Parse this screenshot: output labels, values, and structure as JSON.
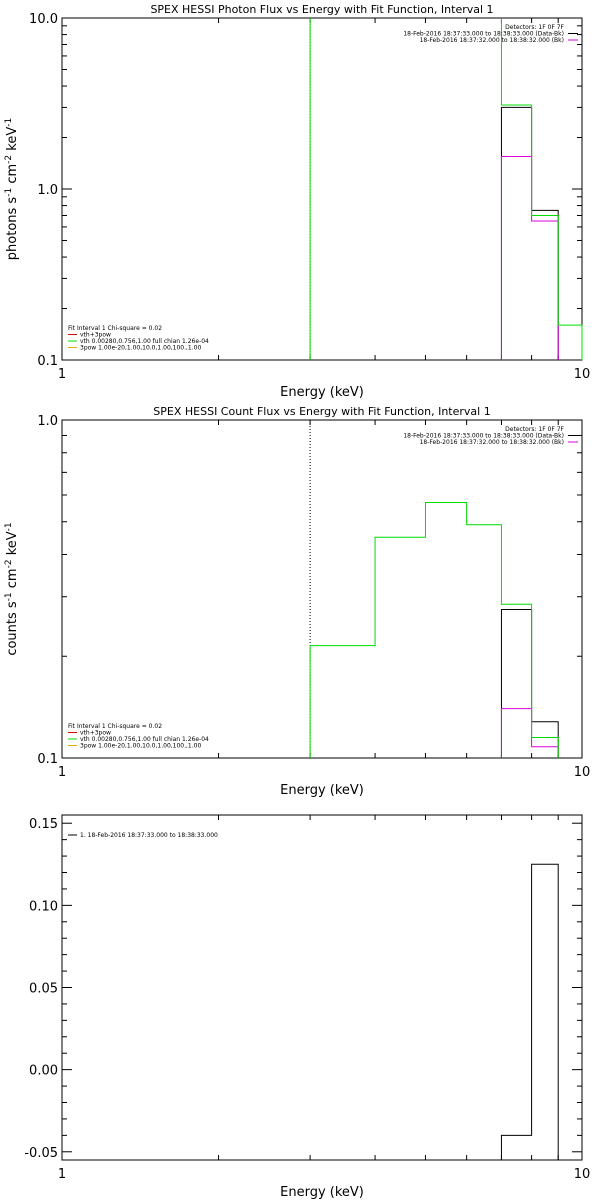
{
  "colors": {
    "black": "#000000",
    "green": "#00dd00",
    "magenta": "#dd00dd",
    "red": "#dd0000",
    "orange": "#ddaa00"
  },
  "chart_data": [
    {
      "type": "line",
      "title": "SPEX HESSI Photon Flux vs Energy with Fit Function, Interval 1",
      "xlabel": "Energy (keV)",
      "ylabel_parts": [
        "photons s",
        "-1",
        " cm",
        "-2",
        " keV",
        "-1"
      ],
      "xscale": "log",
      "yscale": "log",
      "xlim": [
        1,
        10
      ],
      "ylim": [
        0.1,
        10.0
      ],
      "xticks": [
        {
          "value": 1,
          "label": "1"
        },
        {
          "value": 10,
          "label": "10"
        }
      ],
      "yticks": [
        {
          "value": 0.1,
          "label": "0.1"
        },
        {
          "value": 1.0,
          "label": "1.0"
        },
        {
          "value": 10.0,
          "label": "10.0"
        }
      ],
      "vline": {
        "x": 3.0,
        "style": "solid-green-black"
      },
      "legend_right": [
        {
          "text": "Detectors: 1F 0F 7F",
          "color": ""
        },
        {
          "text": "18-Feb-2016 18:37:33.000 to 18:38:33.000 (Data-Bk)",
          "color": "#000000"
        },
        {
          "text": "18-Feb-2016 18:37:32.000 to 18:38:32.000 (Bk)",
          "color": "#dd00dd"
        }
      ],
      "legend_left": [
        {
          "text": "Fit Interval 1   Chi-square = 0.02",
          "color": ""
        },
        {
          "text": "vth+3pow",
          "color": "#dd0000"
        },
        {
          "text": "vth 0.00280,0.756,1.00  full chian 1.26e-04",
          "color": "#00dd00"
        },
        {
          "text": "3pow 1.00e-20,1.00,10.0,1.00,100.,1.00",
          "color": "#ddaa00"
        }
      ],
      "series": [
        {
          "name": "Data-Bk",
          "color": "#000000",
          "edges": [
            7.0,
            8.0,
            9.0
          ],
          "values": [
            3.0,
            0.75
          ]
        },
        {
          "name": "Bk",
          "color": "#dd00dd",
          "edges": [
            7.0,
            8.0,
            9.0
          ],
          "values": [
            1.55,
            0.65
          ]
        },
        {
          "name": "vth",
          "color": "#00dd00",
          "edges": [
            7.0,
            8.0,
            9.0,
            10.0
          ],
          "values": [
            3.1,
            0.7,
            0.16
          ],
          "left_spike": 10.0
        }
      ]
    },
    {
      "type": "line",
      "title": "SPEX HESSI Count Flux vs Energy with Fit Function, Interval 1",
      "xlabel": "Energy (keV)",
      "ylabel_parts": [
        "counts s",
        "-1",
        " cm",
        "-2",
        " keV",
        "-1"
      ],
      "xscale": "log",
      "yscale": "log",
      "xlim": [
        1,
        10
      ],
      "ylim": [
        0.1,
        1.0
      ],
      "xticks": [
        {
          "value": 1,
          "label": "1"
        },
        {
          "value": 10,
          "label": "10"
        }
      ],
      "yticks": [
        {
          "value": 0.1,
          "label": "0.1"
        },
        {
          "value": 1.0,
          "label": "1.0"
        }
      ],
      "vline": {
        "x": 3.0,
        "style": "dotted-black"
      },
      "legend_right": [
        {
          "text": "Detectors: 1F 0F 7F",
          "color": ""
        },
        {
          "text": "18-Feb-2016 18:37:33.000 to 18:38:33.000 (Data-Bk)",
          "color": "#000000"
        },
        {
          "text": "18-Feb-2016 18:37:32.000 to 18:38:32.000 (Bk)",
          "color": "#dd00dd"
        }
      ],
      "legend_left": [
        {
          "text": "Fit Interval 1   Chi-square = 0.02",
          "color": ""
        },
        {
          "text": "vth+3pow",
          "color": "#dd0000"
        },
        {
          "text": "vth 0.00280,0.756,1.00  full chian 1.26e-04",
          "color": "#00dd00"
        },
        {
          "text": "3pow 1.00e-20,1.00,10.0,1.00,100.,1.00",
          "color": "#ddaa00"
        }
      ],
      "series": [
        {
          "name": "Data-Bk",
          "color": "#000000",
          "edges": [
            7.0,
            8.0,
            9.0
          ],
          "values": [
            0.275,
            0.128
          ]
        },
        {
          "name": "Bk",
          "color": "#dd00dd",
          "edges": [
            7.0,
            8.0,
            9.0
          ],
          "values": [
            0.14,
            0.108
          ]
        },
        {
          "name": "vth",
          "color": "#00dd00",
          "edges": [
            3.0,
            4.0,
            5.0,
            6.0,
            7.0,
            8.0,
            9.0
          ],
          "values": [
            0.215,
            0.45,
            0.57,
            0.49,
            0.285,
            0.115
          ]
        }
      ]
    },
    {
      "type": "line",
      "title": "",
      "xlabel": "Energy (keV)",
      "xscale": "log",
      "yscale": "linear",
      "xlim": [
        1,
        10
      ],
      "ylim": [
        -0.055,
        0.155
      ],
      "xticks": [
        {
          "value": 1,
          "label": "1"
        },
        {
          "value": 10,
          "label": "10"
        }
      ],
      "yticks": [
        {
          "value": -0.05,
          "label": "-0.05"
        },
        {
          "value": 0.0,
          "label": "0.00"
        },
        {
          "value": 0.05,
          "label": "0.05"
        },
        {
          "value": 0.1,
          "label": "0.10"
        },
        {
          "value": 0.15,
          "label": "0.15"
        }
      ],
      "legend_left": [
        {
          "text": "1. 18-Feb-2016 18:37:33.000 to 18:38:33.000",
          "color": "#000000"
        }
      ],
      "series": [
        {
          "name": "1",
          "color": "#000000",
          "edges": [
            7.0,
            8.0,
            9.0
          ],
          "values": [
            -0.04,
            0.125
          ]
        }
      ]
    }
  ]
}
